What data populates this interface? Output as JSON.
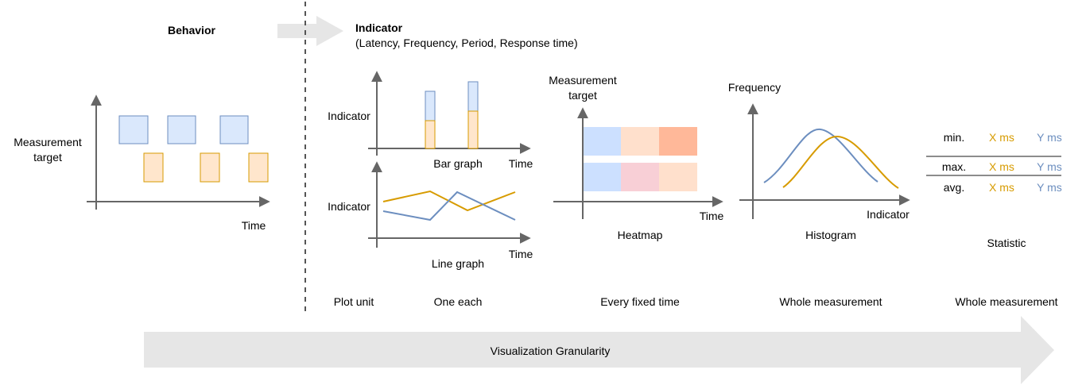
{
  "behavior": {
    "title": "Behavior",
    "y_label_line1": "Measurement",
    "y_label_line2": "target",
    "x_label": "Time"
  },
  "indicator": {
    "title": "Indicator",
    "subtitle": "(Latency, Frequency, Period, Response time)"
  },
  "bar_graph": {
    "y_label": "Indicator",
    "x_label": "Time",
    "caption": "Bar graph"
  },
  "line_graph": {
    "y_label": "Indicator",
    "x_label": "Time",
    "caption": "Line graph"
  },
  "heatmap": {
    "y_label_line1": "Measurement",
    "y_label_line2": "target",
    "x_label": "Time",
    "caption": "Heatmap"
  },
  "histogram": {
    "y_label": "Frequency",
    "x_label": "Indicator",
    "caption": "Histogram"
  },
  "statistic": {
    "caption": "Statistic",
    "rows": [
      {
        "label": "min.",
        "x": "X ms",
        "y": "Y ms"
      },
      {
        "label": "max.",
        "x": "X ms",
        "y": "Y ms"
      },
      {
        "label": "avg.",
        "x": "X ms",
        "y": "Y ms"
      }
    ]
  },
  "plot_units": {
    "header": "Plot unit",
    "bar_line": "One each",
    "heatmap": "Every fixed time",
    "histogram": "Whole measurement",
    "statistic": "Whole measurement"
  },
  "granularity_arrow": {
    "label": "Visualization Granularity"
  },
  "colors": {
    "axis": "#666666",
    "blue_fill": "#dae8fc",
    "blue_stroke": "#6c8ebf",
    "orange_fill": "#ffe6cc",
    "orange_stroke": "#d79b00",
    "arrow_fill": "#e6e6e6",
    "heat_blue": "#cce0ff",
    "heat_peach": "#ffe0cc",
    "heat_salmon": "#ffb899",
    "heat_pink": "#f8cfd6"
  }
}
